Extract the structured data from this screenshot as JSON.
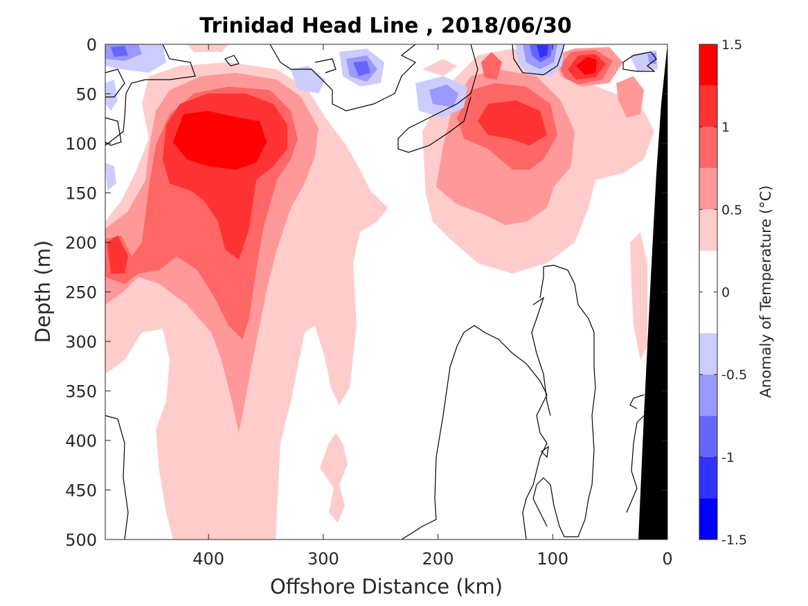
{
  "chart_data": {
    "type": "heatmap",
    "title": "Trinidad Head Line , 2018/06/30",
    "xlabel": "Offshore Distance (km)",
    "ylabel": "Depth (m)",
    "x_ticks": [
      400,
      300,
      200,
      100,
      0
    ],
    "y_ticks": [
      0,
      50,
      100,
      150,
      200,
      250,
      300,
      350,
      400,
      450,
      500
    ],
    "xlim": [
      490,
      0
    ],
    "ylim": [
      0,
      500
    ],
    "x_axis_reversed": true,
    "y_axis_reversed": true,
    "colorbar": {
      "label": "Anomaly of Temperature (°C)",
      "ticks": [
        "1.5",
        "1",
        "0.5",
        "0",
        "-0.5",
        "-1",
        "-1.5"
      ],
      "range": [
        -1.5,
        1.5
      ],
      "levels": [
        -1.5,
        -1.25,
        -1.0,
        -0.75,
        -0.5,
        -0.25,
        0.25,
        0.5,
        0.75,
        1.0,
        1.25,
        1.5
      ],
      "colors": [
        "#0000ff",
        "#3333ff",
        "#6666ff",
        "#9999ff",
        "#ccccff",
        "#ffffff",
        "#ffcccc",
        "#ff9999",
        "#ff6666",
        "#ff3333",
        "#ff0000"
      ]
    },
    "features": [
      {
        "name": "warm core offshore",
        "x_km": 385,
        "depth_m": 100,
        "anomaly": 1.4
      },
      {
        "name": "warm core nearshore",
        "x_km": 130,
        "depth_m": 80,
        "anomaly": 1.1
      },
      {
        "name": "warm surface patch",
        "x_km": 70,
        "depth_m": 20,
        "anomaly": 1.3
      },
      {
        "name": "cold surface patch",
        "x_km": 110,
        "depth_m": 10,
        "anomaly": -1.1
      },
      {
        "name": "cold surface patch offshore",
        "x_km": 270,
        "depth_m": 25,
        "anomaly": -0.8
      },
      {
        "name": "cold surface patch",
        "x_km": 225,
        "depth_m": 50,
        "anomaly": -0.7
      }
    ],
    "grid": false,
    "land_mask_color": "#000000"
  }
}
